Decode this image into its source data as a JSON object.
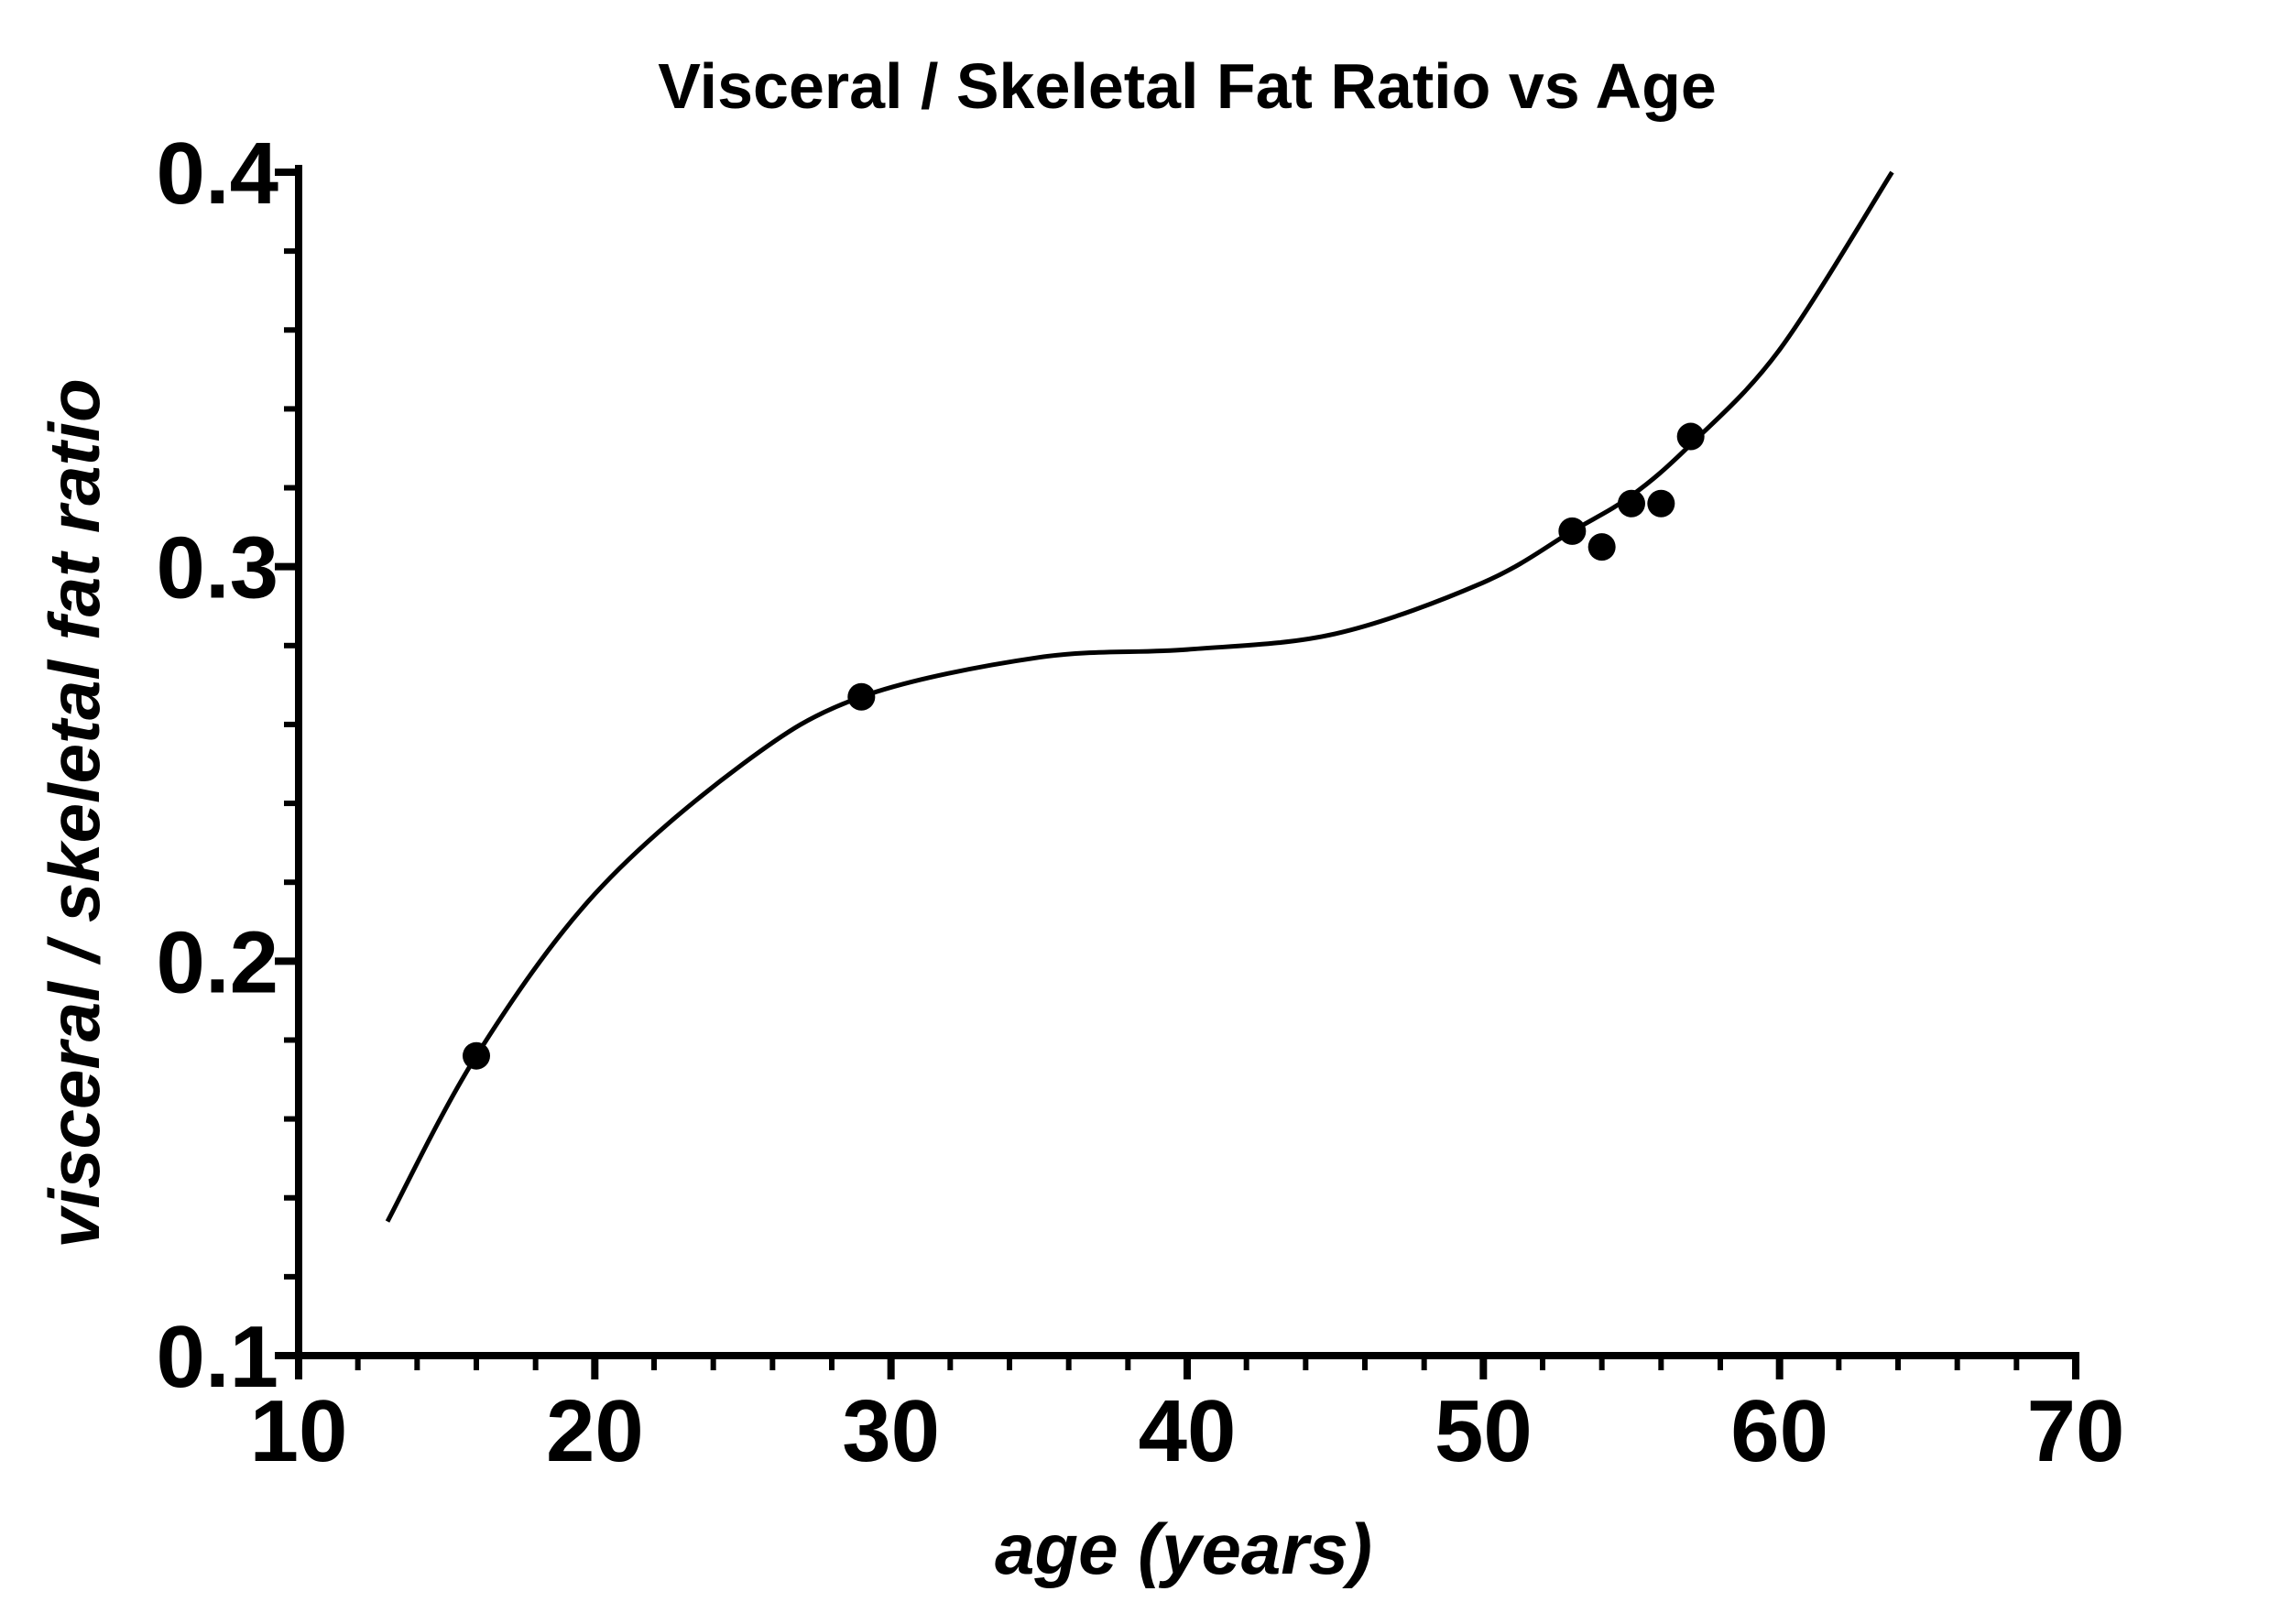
{
  "chart_data": {
    "type": "scatter",
    "title": "Visceral / Skeletal Fat  Ratio vs Age",
    "xlabel": "age (years)",
    "ylabel": "visceral / skeletal fat ratio",
    "xlim": [
      10,
      70
    ],
    "ylim": [
      0.1,
      0.4
    ],
    "x_ticks": [
      "10",
      "20",
      "30",
      "40",
      "50",
      "60",
      "70"
    ],
    "y_ticks": [
      "0.1",
      "0.2",
      "0.3",
      "0.4"
    ],
    "x_minor_step": 2,
    "y_minor_step": 0.02,
    "grid": false,
    "legend": "none",
    "colors": {
      "ink": "#000000"
    },
    "series": [
      {
        "kind": "points",
        "x": [
          16,
          29,
          53,
          54,
          55,
          56,
          57
        ],
        "y": [
          0.176,
          0.267,
          0.309,
          0.305,
          0.316,
          0.316,
          0.333
        ]
      },
      {
        "kind": "fit-curve",
        "x": [
          13,
          16,
          20,
          25,
          29,
          35,
          40,
          45,
          50,
          53,
          55,
          57,
          60,
          63.8
        ],
        "y": [
          0.134,
          0.176,
          0.217,
          0.25,
          0.267,
          0.277,
          0.279,
          0.283,
          0.296,
          0.309,
          0.318,
          0.331,
          0.355,
          0.4
        ]
      }
    ]
  }
}
